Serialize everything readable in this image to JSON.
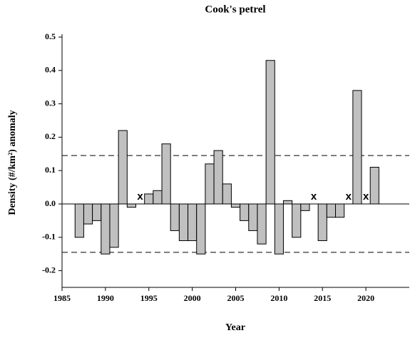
{
  "chart_data": {
    "type": "bar",
    "title": "Cook's petrel",
    "xlabel": "Year",
    "ylabel": "Density (#/km²) anomaly",
    "x": [
      1987,
      1988,
      1989,
      1990,
      1991,
      1992,
      1993,
      1994,
      1995,
      1996,
      1997,
      1998,
      1999,
      2000,
      2001,
      2002,
      2003,
      2004,
      2005,
      2006,
      2007,
      2008,
      2009,
      2010,
      2011,
      2012,
      2013,
      2014,
      2015,
      2016,
      2017,
      2018,
      2019,
      2020,
      2021
    ],
    "values": [
      -0.1,
      -0.06,
      -0.05,
      -0.15,
      -0.13,
      0.22,
      -0.01,
      null,
      0.03,
      0.04,
      0.18,
      -0.08,
      -0.11,
      -0.11,
      -0.15,
      0.12,
      0.16,
      0.06,
      -0.01,
      -0.05,
      -0.08,
      -0.12,
      0.43,
      -0.15,
      0.01,
      -0.1,
      -0.02,
      null,
      -0.11,
      -0.04,
      -0.04,
      null,
      0.34,
      null,
      0.11
    ],
    "missing_marker": "x",
    "color": "#c0c0c0",
    "reference_lines": [
      0.145,
      -0.145
    ],
    "xlim": [
      1985,
      2025
    ],
    "xticks": [
      1985,
      1990,
      1995,
      2000,
      2005,
      2010,
      2015,
      2020
    ],
    "ylim": [
      -0.25,
      0.5
    ],
    "yticks": [
      -0.2,
      -0.1,
      {
        "value": 0,
        "label": "0.0"
      },
      0.1,
      0.2,
      0.3,
      0.4,
      0.5
    ]
  }
}
